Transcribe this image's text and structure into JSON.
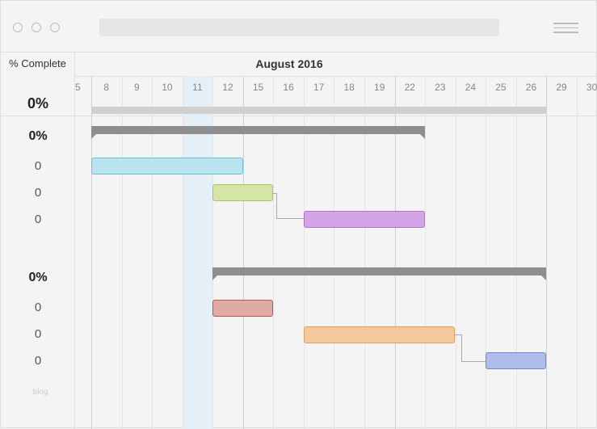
{
  "header": {
    "column_label": "% Complete",
    "month": "August 2016"
  },
  "days": [
    "5",
    "8",
    "9",
    "10",
    "11",
    "12",
    "15",
    "16",
    "17",
    "18",
    "19",
    "22",
    "23",
    "24",
    "25",
    "26",
    "29",
    "30"
  ],
  "project": {
    "percent": "0%"
  },
  "groups": [
    {
      "percent": "0%",
      "tasks": [
        {
          "value": "0",
          "color": "#b9e3ee",
          "start": "Aug 8",
          "end": "Aug 12"
        },
        {
          "value": "0",
          "color": "#d5e5a8",
          "start": "Aug 12",
          "end": "Aug 15"
        },
        {
          "value": "0",
          "color": "#d4a5e6",
          "start": "Aug 17",
          "end": "Aug 22"
        }
      ]
    },
    {
      "percent": "0%",
      "tasks": [
        {
          "value": "0",
          "color": "#e0aaa5",
          "start": "Aug 12",
          "end": "Aug 15"
        },
        {
          "value": "0",
          "color": "#f2c89c",
          "start": "Aug 17",
          "end": "Aug 23"
        },
        {
          "value": "0",
          "color": "#aebde9",
          "start": "Aug 25",
          "end": "Aug 26"
        }
      ]
    }
  ],
  "today": "11",
  "footer": "blog"
}
